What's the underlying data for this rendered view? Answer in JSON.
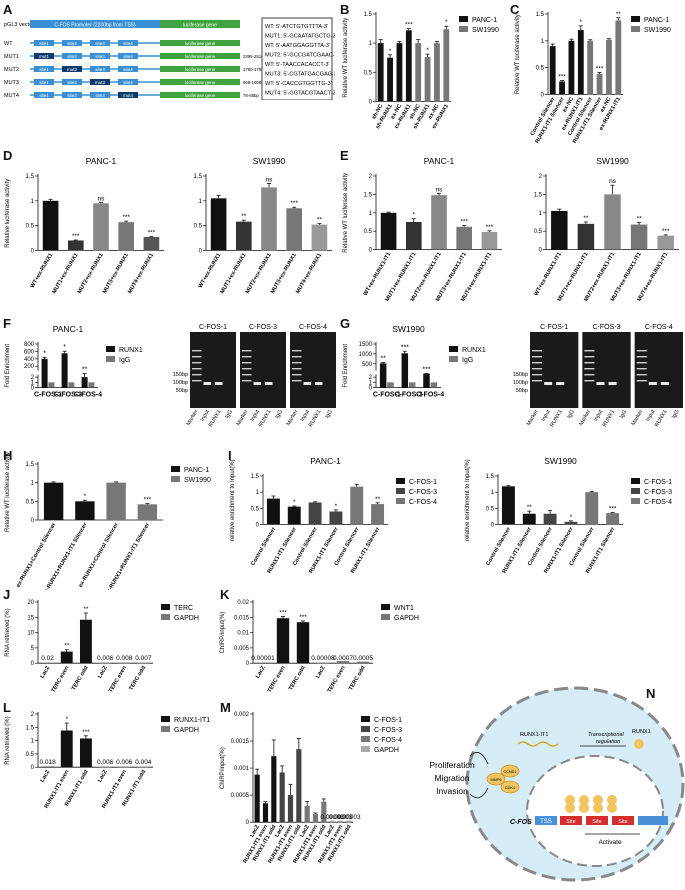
{
  "panels": {
    "A": {
      "letter": "A",
      "vector_label": "pGL3 vector",
      "promoter_label": "C-FOS Promoter (2200bp from TSS)",
      "luc_label": "luciferase gene",
      "rows": [
        {
          "name": "WT",
          "sites": [
            "site1",
            "site2",
            "site3",
            "site4"
          ],
          "range": ""
        },
        {
          "name": "MUT1",
          "sites": [
            "mut1",
            "site2",
            "site3",
            "site4"
          ],
          "range": "2395-2510bp"
        },
        {
          "name": "MUT2",
          "sites": [
            "site1",
            "mut2",
            "site3",
            "site4"
          ],
          "range": "1780-1790bp"
        },
        {
          "name": "MUT3",
          "sites": [
            "site1",
            "site2",
            "mut3",
            "site4"
          ],
          "range": "968-1008bp"
        },
        {
          "name": "MUT4",
          "sites": [
            "site1",
            "site2",
            "site3",
            "mut4"
          ],
          "range": "78-88bp"
        }
      ],
      "sequences": [
        "WT: 5'-ATCTGTGTTTA-3'",
        "MUT1: 5'-GCAATATGCTG-3'",
        "WT:  5'-AATGGAGGTTA-3'",
        "MUT2: 5'-GCCGATCGAAC-3'",
        "WT:  5'-TAACCACACCT-3'",
        "MUT3: 5'-CGTATGACGAG-3'",
        "WT:  5'-CACCGTGGTTG-3'",
        "MUT4: 5'-GGTACGTAACT-3'"
      ]
    },
    "N": {
      "letter": "N",
      "phenotype": [
        "Proliferation",
        "Migration",
        "Invasion"
      ],
      "proteins": [
        "CCND1",
        "MMP9",
        "CDK4"
      ],
      "rna_label": "RUNX1-IT1",
      "reg_label": [
        "Transcriptional",
        "regulation"
      ],
      "runx1_label": "RUNX1",
      "gene_label": "C-FOS",
      "tss_label": "TSS",
      "site_label": "Site",
      "activate_label": "Activate"
    }
  },
  "chart_data": [
    {
      "id": "B",
      "type": "bar",
      "ylabel": "Relative WT luciferase activity",
      "ylim": [
        0,
        1.5
      ],
      "yticks": [
        0,
        0.5,
        1.0,
        1.5
      ],
      "legend": [
        "PANC-1",
        "SW1990"
      ],
      "legend_colors": [
        "#111111",
        "#777777"
      ],
      "categories": [
        "sh-NC",
        "sh-RUNX1",
        "ex-NC",
        "ex-RUNX1",
        "sh-NC",
        "sh-RUNX1",
        "ex-NC",
        "ex-RUNX1"
      ],
      "values": [
        1.0,
        0.75,
        1.0,
        1.22,
        1.0,
        0.76,
        1.0,
        1.24
      ],
      "errors": [
        0.06,
        0.05,
        0.03,
        0.03,
        0.06,
        0.05,
        0.03,
        0.05
      ],
      "colors": [
        "#111111",
        "#111111",
        "#111111",
        "#111111",
        "#777777",
        "#777777",
        "#777777",
        "#777777"
      ],
      "sig": [
        "",
        "*",
        "",
        "***",
        "",
        "*",
        "",
        "*"
      ]
    },
    {
      "id": "C",
      "type": "bar",
      "ylabel": "Relative WT luciferase activity",
      "ylim": [
        0,
        1.5
      ],
      "yticks": [
        0,
        0.5,
        1.0,
        1.5
      ],
      "legend": [
        "PANC-1",
        "SW1990"
      ],
      "legend_colors": [
        "#111111",
        "#777777"
      ],
      "categories": [
        "Control Silencer",
        "RUNX1-IT1 Silencer",
        "ex-NC",
        "ex-RUNX1-IT1",
        "Control Silencer",
        "RUNX1-IT1 Silencer",
        "ex-NC",
        "ex-RUNX1-IT1"
      ],
      "values": [
        0.9,
        0.24,
        1.0,
        1.2,
        1.0,
        0.38,
        1.02,
        1.38
      ],
      "errors": [
        0.04,
        0.02,
        0.03,
        0.08,
        0.02,
        0.03,
        0.02,
        0.05
      ],
      "colors": [
        "#111111",
        "#111111",
        "#111111",
        "#111111",
        "#777777",
        "#777777",
        "#777777",
        "#777777"
      ],
      "sig": [
        "",
        "***",
        "",
        "*",
        "",
        "***",
        "",
        "**"
      ]
    },
    {
      "id": "D1",
      "type": "bar",
      "title": "PANC-1",
      "ylabel": "Relative luciferase activity",
      "ylim": [
        0,
        1.5
      ],
      "yticks": [
        0,
        0.5,
        1.0,
        1.5
      ],
      "categories": [
        "WT+ex-RUNX1",
        "MUT1+ex-RUNX1",
        "MUT2+ex-RUNX1",
        "MUT3+ex-RUNX1",
        "MUT4+ex-RUNX1"
      ],
      "values": [
        1.0,
        0.2,
        0.95,
        0.57,
        0.27
      ],
      "errors": [
        0.03,
        0.01,
        0.02,
        0.02,
        0.01
      ],
      "colors": [
        "#111111",
        "#333333",
        "#888888",
        "#777777",
        "#555555"
      ],
      "sig": [
        "",
        "***",
        "ns",
        "***",
        "***"
      ]
    },
    {
      "id": "D2",
      "type": "bar",
      "title": "SW1990",
      "ylabel": "",
      "ylim": [
        0,
        1.5
      ],
      "yticks": [
        0,
        0.5,
        1.0,
        1.5
      ],
      "categories": [
        "WT+ex-RUNX1",
        "MUT1+ex-RUNX1",
        "MUT2+ex-RUNX1",
        "MUT3+ex-RUNX1",
        "MUT4+ex-RUNX1"
      ],
      "values": [
        1.05,
        0.58,
        1.27,
        0.85,
        0.52
      ],
      "errors": [
        0.06,
        0.03,
        0.08,
        0.02,
        0.02
      ],
      "colors": [
        "#111111",
        "#333333",
        "#888888",
        "#777777",
        "#999999"
      ],
      "sig": [
        "",
        "**",
        "ns",
        "***",
        "**"
      ]
    },
    {
      "id": "E1",
      "type": "bar",
      "title": "PANC-1",
      "ylabel": "Relative WT luciferase activity",
      "ylim": [
        0,
        2.0
      ],
      "yticks": [
        0,
        0.5,
        1.0,
        1.5,
        2.0
      ],
      "categories": [
        "WT+ex-RUNX1-IT1",
        "MUT1+ex-RUNX1-IT1",
        "MUT2+ex-RUNX1-IT1",
        "MUT3+ex-RUNX1-IT1",
        "MUT4+ex-RUNX1-IT1"
      ],
      "values": [
        1.0,
        0.75,
        1.48,
        0.62,
        0.48
      ],
      "errors": [
        0.02,
        0.09,
        0.05,
        0.03,
        0.03
      ],
      "colors": [
        "#111111",
        "#333333",
        "#888888",
        "#777777",
        "#999999"
      ],
      "sig": [
        "",
        "*",
        "ns",
        "***",
        "***"
      ]
    },
    {
      "id": "E2",
      "type": "bar",
      "title": "SW1990",
      "ylabel": "",
      "ylim": [
        0,
        2.0
      ],
      "yticks": [
        0,
        0.5,
        1.0,
        1.5,
        2.0
      ],
      "categories": [
        "WT+ex-RUNX1-IT1",
        "MUT1+ex-RUNX1-IT1",
        "MUT2+ex-RUNX1-IT1",
        "MUT3+ex-RUNX1-IT1",
        "MUT4+ex-RUNX1-IT1"
      ],
      "values": [
        1.05,
        0.7,
        1.5,
        0.68,
        0.38
      ],
      "errors": [
        0.05,
        0.05,
        0.25,
        0.06,
        0.02
      ],
      "colors": [
        "#111111",
        "#333333",
        "#888888",
        "#777777",
        "#999999"
      ],
      "sig": [
        "",
        "**",
        "ns",
        "**",
        "***"
      ]
    },
    {
      "id": "F",
      "type": "bar",
      "title": "PANC-1",
      "ylabel": "Fold Enrichment",
      "ylim": [
        0,
        800
      ],
      "yticks": [
        0,
        1,
        2,
        200,
        400,
        600,
        800
      ],
      "legend": [
        "RUNX1",
        "IgG"
      ],
      "legend_colors": [
        "#111111",
        "#777777"
      ],
      "categories": [
        "C-FOS-1",
        "C-FOS-3",
        "C-FOS-4"
      ],
      "series": [
        {
          "name": "RUNX1",
          "values": [
            400,
            550,
            2
          ]
        },
        {
          "name": "IgG",
          "values": [
            1,
            1,
            1
          ]
        }
      ],
      "sig": [
        "*",
        "*",
        "**"
      ]
    },
    {
      "id": "G",
      "type": "bar",
      "title": "SW1990",
      "ylabel": "Fold Enrichment",
      "ylim": [
        0,
        1500
      ],
      "yticks": [
        0,
        1,
        2,
        500,
        1000,
        1500
      ],
      "legend": [
        "RUNX1",
        "IgG"
      ],
      "legend_colors": [
        "#111111",
        "#777777"
      ],
      "categories": [
        "C-FOS-1",
        "C-FOS-3",
        "C-FOS-4"
      ],
      "series": [
        {
          "name": "RUNX1",
          "values": [
            520,
            1030,
            2.5
          ]
        },
        {
          "name": "IgG",
          "values": [
            1,
            1,
            1
          ]
        }
      ],
      "sig": [
        "**",
        "***",
        "***"
      ]
    },
    {
      "id": "H",
      "type": "bar",
      "ylabel": "Relative WT luciferase activity",
      "ylim": [
        0,
        1.5
      ],
      "yticks": [
        0,
        0.5,
        1.0,
        1.5
      ],
      "legend": [
        "PANC-1",
        "SW1990"
      ],
      "legend_colors": [
        "#111111",
        "#777777"
      ],
      "categories": [
        "ex-RUNX1+Control Silencer",
        "ex-RUNX1+RUNX1-IT1 Silencer",
        "ex-RUNX1+Control Silencer",
        "ex-RUNX1+RUNX1-IT1 Silencer"
      ],
      "values": [
        1.0,
        0.5,
        1.0,
        0.42
      ],
      "errors": [
        0.02,
        0.03,
        0.02,
        0.02
      ],
      "colors": [
        "#111111",
        "#111111",
        "#777777",
        "#777777"
      ],
      "sig": [
        "",
        "*",
        "",
        "***"
      ]
    },
    {
      "id": "I1",
      "type": "bar",
      "title": "PANC-1",
      "ylabel": "relative enrichment to Input(%)",
      "ylim": [
        0,
        1.5
      ],
      "yticks": [
        0,
        0.5,
        1.0,
        1.5
      ],
      "legend": [
        "C-FOS-1",
        "C-FOS-3",
        "C-FOS-4"
      ],
      "legend_colors": [
        "#111111",
        "#444444",
        "#777777"
      ],
      "categories": [
        "Control Silencer",
        "RUNX1-IT1 Silencer",
        "Control Silencer",
        "RUNX1-IT1 Silencer",
        "Control Silencer",
        "RUNX1-IT1 Silencer"
      ],
      "values": [
        0.8,
        0.55,
        0.68,
        0.4,
        1.17,
        0.63
      ],
      "errors": [
        0.08,
        0.02,
        0.02,
        0.05,
        0.07,
        0.04
      ],
      "colors": [
        "#111111",
        "#111111",
        "#444444",
        "#444444",
        "#777777",
        "#777777"
      ],
      "sig": [
        "",
        "*",
        "",
        "*",
        "",
        "**"
      ]
    },
    {
      "id": "I2",
      "type": "bar",
      "title": "SW1990",
      "ylabel": "relative enrichment to Input(%)",
      "ylim": [
        0,
        1.5
      ],
      "yticks": [
        0,
        0.5,
        1.0,
        1.5
      ],
      "legend": [
        "C-FOS-1",
        "C-FOS-3",
        "C-FOS-4"
      ],
      "legend_colors": [
        "#111111",
        "#444444",
        "#777777"
      ],
      "categories": [
        "Control Silencer",
        "RUNX1-IT1 Silencer",
        "Control Silencer",
        "RUNX1-IT1 Silencer",
        "Control Silencer",
        "RUNX1-IT1 Silencer"
      ],
      "values": [
        1.18,
        0.33,
        0.33,
        0.08,
        1.0,
        0.35
      ],
      "errors": [
        0.02,
        0.08,
        0.1,
        0.03,
        0.02,
        0.02
      ],
      "colors": [
        "#111111",
        "#111111",
        "#444444",
        "#444444",
        "#777777",
        "#777777"
      ],
      "sig": [
        "",
        "**",
        "",
        "*",
        "",
        "***"
      ]
    },
    {
      "id": "J",
      "type": "bar",
      "ylabel": "RNA retrieved (%)",
      "ylim": [
        0,
        20
      ],
      "yticks": [
        0,
        5,
        10,
        15,
        20
      ],
      "legend": [
        "TERC",
        "GAPDH"
      ],
      "legend_colors": [
        "#111111",
        "#777777"
      ],
      "categories": [
        "LacZ",
        "TERC even",
        "TERC odd",
        "LacZ",
        "TERC even",
        "TERC odd"
      ],
      "values": [
        0.02,
        3.8,
        14.2,
        0.006,
        0.008,
        0.007
      ],
      "errors": [
        0,
        0.6,
        2.2,
        0,
        0,
        0
      ],
      "colors": [
        "#111111",
        "#111111",
        "#111111",
        "#777777",
        "#777777",
        "#777777"
      ],
      "sig": [
        "",
        "**",
        "**",
        "",
        "",
        ""
      ],
      "value_labels": [
        "0.02",
        "",
        "",
        "0.006",
        "0.008",
        "0.007"
      ]
    },
    {
      "id": "K",
      "type": "bar",
      "ylabel": "ChIRP/input(%)",
      "ylim": [
        0,
        0.02
      ],
      "yticks": [
        0,
        0.005,
        0.01,
        0.015,
        0.02
      ],
      "legend": [
        "WNT1",
        "GAPDH"
      ],
      "legend_colors": [
        "#111111",
        "#777777"
      ],
      "categories": [
        "LacZ",
        "TERC even",
        "TERC odd",
        "LacZ",
        "TERC even",
        "TERC odd"
      ],
      "values": [
        1e-05,
        0.0147,
        0.0134,
        8e-05,
        0.0007,
        0.0005
      ],
      "errors": [
        0,
        0.0006,
        0.0004,
        0,
        0,
        0
      ],
      "colors": [
        "#111111",
        "#111111",
        "#111111",
        "#777777",
        "#777777",
        "#777777"
      ],
      "sig": [
        "",
        "***",
        "***",
        "",
        "",
        ""
      ],
      "value_labels": [
        "0.00001",
        "",
        "",
        "0.00008",
        "0.0007",
        "0.0005"
      ]
    },
    {
      "id": "L",
      "type": "bar",
      "ylabel": "RNA retrieved (%)",
      "ylim": [
        0,
        2.0
      ],
      "yticks": [
        0,
        0.5,
        1.0,
        1.5,
        2.0
      ],
      "legend": [
        "RUNX1-IT1",
        "GAPDH"
      ],
      "legend_colors": [
        "#111111",
        "#777777"
      ],
      "categories": [
        "LacZ",
        "RUNX1-IT1 even",
        "RUNX1-IT1 odd",
        "LacZ",
        "RUNX1-IT1 even",
        "RUNX1-IT1 odd"
      ],
      "values": [
        0.018,
        1.38,
        1.08,
        0.006,
        0.006,
        0.004
      ],
      "errors": [
        0,
        0.28,
        0.1,
        0,
        0,
        0
      ],
      "colors": [
        "#111111",
        "#111111",
        "#111111",
        "#777777",
        "#777777",
        "#777777"
      ],
      "sig": [
        "",
        "*",
        "***",
        "",
        "",
        ""
      ],
      "value_labels": [
        "0.018",
        "",
        "",
        "0.006",
        "0.006",
        "0.004"
      ]
    },
    {
      "id": "M",
      "type": "bar",
      "ylabel": "ChIRP/input(%)",
      "ylim": [
        0,
        0.002
      ],
      "yticks": [
        0,
        0.0005,
        0.001,
        0.0015,
        0.002
      ],
      "legend": [
        "C-FOS-1",
        "C-FOS-3",
        "C-FOS-4",
        "GAPDH"
      ],
      "legend_colors": [
        "#111111",
        "#444444",
        "#777777",
        "#aaaaaa"
      ],
      "categories": [
        "LacZ",
        "RUNX1-IT1 even",
        "RUNX1-IT1 odd",
        "LacZ",
        "RUNX1-IT1 even",
        "RUNX1-IT1 odd",
        "LacZ",
        "RUNX1-IT1 even",
        "RUNX1-IT1 odd",
        "LacZ",
        "RUNX1-IT1 even",
        "RUNX1-IT1 odd"
      ],
      "values": [
        0.00088,
        0.00035,
        0.00122,
        0.00092,
        0.0005,
        0.00135,
        0.0003,
        0.00015,
        0.00038,
        3e-05,
        3e-05,
        3e-05
      ],
      "errors": [
        0.0001,
        3e-05,
        0.0003,
        0.00012,
        0.0002,
        0.0002,
        8e-05,
        2e-05,
        5e-05,
        0,
        0,
        0
      ],
      "colors": [
        "#111111",
        "#111111",
        "#111111",
        "#444444",
        "#444444",
        "#444444",
        "#777777",
        "#777777",
        "#777777",
        "#aaaaaa",
        "#aaaaaa",
        "#aaaaaa"
      ],
      "value_labels": [
        "",
        "",
        "",
        "",
        "",
        "",
        "",
        "",
        "",
        "0.00003",
        "0.00003",
        "0.00003"
      ]
    }
  ],
  "gels": [
    {
      "id": "F",
      "lanes_top": [
        "C-FOS-1",
        "C-FOS-3",
        "C-FOS-4"
      ],
      "markers": [
        "150bp",
        "100bp",
        "50bp"
      ],
      "lanes": [
        "Marker",
        "Input",
        "RUNX1",
        "IgG",
        "Marker",
        "Input",
        "RUNX1",
        "IgG",
        "Marker",
        "Input",
        "RUNX1",
        "IgG"
      ]
    },
    {
      "id": "G",
      "lanes_top": [
        "C-FOS-1",
        "C-FOS-3",
        "C-FOS-4"
      ],
      "markers": [
        "150bp",
        "100bp",
        "50bp"
      ],
      "lanes": [
        "Marker",
        "Input",
        "RUNX1",
        "IgG",
        "Marker",
        "Input",
        "RUNX1",
        "IgG",
        "Marker",
        "Input",
        "RUNX1",
        "IgG"
      ]
    }
  ],
  "letters": {
    "B": "B",
    "C": "C",
    "D": "D",
    "E": "E",
    "F": "F",
    "G": "G",
    "H": "H",
    "I": "I",
    "J": "J",
    "K": "K",
    "L": "L",
    "M": "M"
  }
}
